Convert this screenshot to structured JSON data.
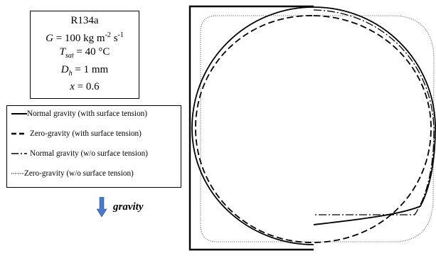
{
  "params": {
    "fluid": "R134a",
    "G": {
      "sym": "G",
      "eq": " = 100 kg m",
      "e1": "-2",
      "mid": " s",
      "e2": "-1"
    },
    "T": {
      "sym": "T",
      "sub": "sat",
      "eq": " = 40 °C"
    },
    "D": {
      "sym": "D",
      "sub": "h",
      "eq": " = 1 mm"
    },
    "x": {
      "sym": "x",
      "eq": " = 0.6"
    }
  },
  "legend": [
    {
      "label": "Normal gravity (with surface tension)",
      "style": "solid"
    },
    {
      "label": "Zero-gravity (with surface tension)",
      "style": "dashed"
    },
    {
      "label": "Normal gravity (w/o surface tension)",
      "style": "dashdot"
    },
    {
      "label": "Zero-gravity (w/o surface tension)",
      "style": "dotted"
    }
  ],
  "gravity": {
    "label": "gravity",
    "arrow_color": "#4a79c5",
    "icon": "down-arrow-icon"
  },
  "colors": {
    "line": "#000000",
    "dotted": "#555555"
  }
}
